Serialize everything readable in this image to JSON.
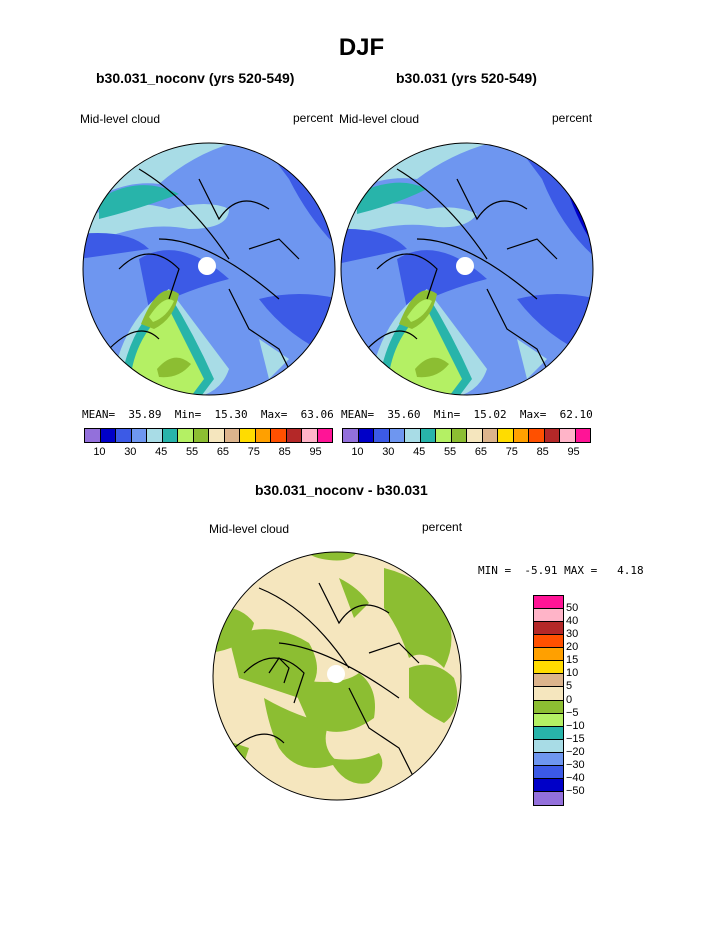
{
  "title": "DJF",
  "colors": {
    "field_scale": [
      "#9370DB",
      "#0000C8",
      "#3C5AE6",
      "#6E96F0",
      "#A8DCE6",
      "#28B4AA",
      "#B4F064",
      "#8CBE32",
      "#F5E6BE",
      "#DCB48C",
      "#FFDC00",
      "#FFA000",
      "#FF5000",
      "#B42828",
      "#FFB4C8",
      "#FF1496"
    ],
    "diff_scale": [
      "#FF1496",
      "#FFB4C8",
      "#B42828",
      "#FF5000",
      "#FFA000",
      "#FFDC00",
      "#DCB48C",
      "#F5E6BE",
      "#8CBE32",
      "#B4F064",
      "#28B4AA",
      "#A8DCE6",
      "#6E96F0",
      "#3C5AE6",
      "#0000C8",
      "#9370DB"
    ]
  },
  "panels": [
    {
      "title": "b30.031_noconv (yrs 520-549)",
      "field": "Mid-level cloud",
      "units": "percent",
      "stats": {
        "mean_label": "MEAN=",
        "mean": "35.89",
        "min_label": "Min=",
        "min": "15.30",
        "max_label": "Max=",
        "max": "63.06"
      }
    },
    {
      "title": "b30.031 (yrs 520-549)",
      "field": "Mid-level cloud",
      "units": "percent",
      "stats": {
        "mean_label": "MEAN=",
        "mean": "35.60",
        "min_label": "Min=",
        "min": "15.02",
        "max_label": "Max=",
        "max": "62.10"
      }
    }
  ],
  "field_ticks": [
    "10",
    "30",
    "45",
    "55",
    "65",
    "75",
    "85",
    "95"
  ],
  "diff_panel": {
    "title": "b30.031_noconv - b30.031",
    "field": "Mid-level cloud",
    "units": "percent",
    "stats": {
      "min_label": "MIN =",
      "min": "-5.91",
      "max_label": "MAX =",
      "max": "4.18"
    },
    "ticks": [
      "50",
      "40",
      "30",
      "20",
      "15",
      "10",
      "5",
      "0",
      "−5",
      "−10",
      "−15",
      "−20",
      "−30",
      "−40",
      "−50"
    ]
  }
}
